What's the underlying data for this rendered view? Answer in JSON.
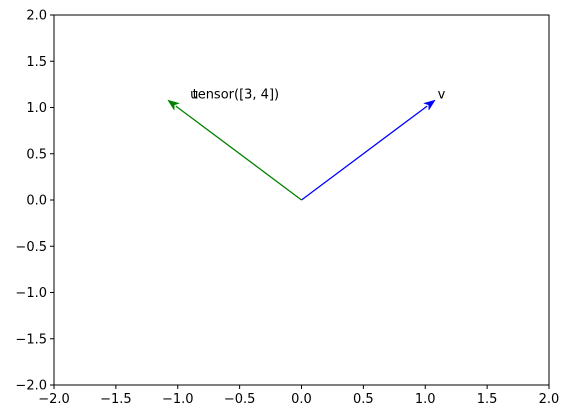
{
  "chart_data": {
    "type": "quiver",
    "xlim": [
      -2.0,
      2.0
    ],
    "ylim": [
      -2.0,
      2.0
    ],
    "xticks": [
      -2.0,
      -1.5,
      -1.0,
      -0.5,
      0.0,
      0.5,
      1.0,
      1.5,
      2.0
    ],
    "xtick_labels": [
      "−2.0",
      "−1.5",
      "−1.0",
      "−0.5",
      "0.0",
      "0.5",
      "1.0",
      "1.5",
      "2.0"
    ],
    "yticks": [
      -2.0,
      -1.5,
      -1.0,
      -0.5,
      0.0,
      0.5,
      1.0,
      1.5,
      2.0
    ],
    "ytick_labels": [
      "−2.0",
      "−1.5",
      "−1.0",
      "−0.5",
      "0.0",
      "0.5",
      "1.0",
      "1.5",
      "2.0"
    ],
    "grid": false,
    "vectors": [
      {
        "origin": [
          0.0,
          0.0
        ],
        "end": [
          1.08,
          1.08
        ],
        "color": "#0000ff",
        "label": "v",
        "label_pos": [
          1.1,
          1.1
        ]
      },
      {
        "origin": [
          0.0,
          0.0
        ],
        "end": [
          -1.08,
          1.08
        ],
        "color": "#008000",
        "label": "u",
        "label_pos": [
          -0.9,
          1.1
        ]
      }
    ],
    "annotations": [
      {
        "text": "tensor([3, 4])",
        "pos": [
          -0.88,
          1.1
        ]
      }
    ]
  }
}
